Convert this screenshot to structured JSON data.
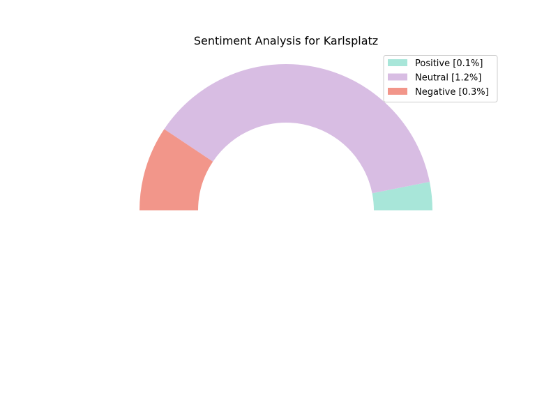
{
  "chart_data": {
    "type": "pie",
    "style": "half-donut",
    "title": "Sentiment Analysis for Karlsplatz",
    "legend_position": "top-right",
    "slices": [
      {
        "label": "Positive [0.1%]",
        "value": 0.1,
        "color": "#a8e6d9"
      },
      {
        "label": "Neutral [1.2%]",
        "value": 1.2,
        "color": "#d8bde3"
      },
      {
        "label": "Negative [0.3%]",
        "value": 0.3,
        "color": "#f2968a"
      }
    ]
  }
}
